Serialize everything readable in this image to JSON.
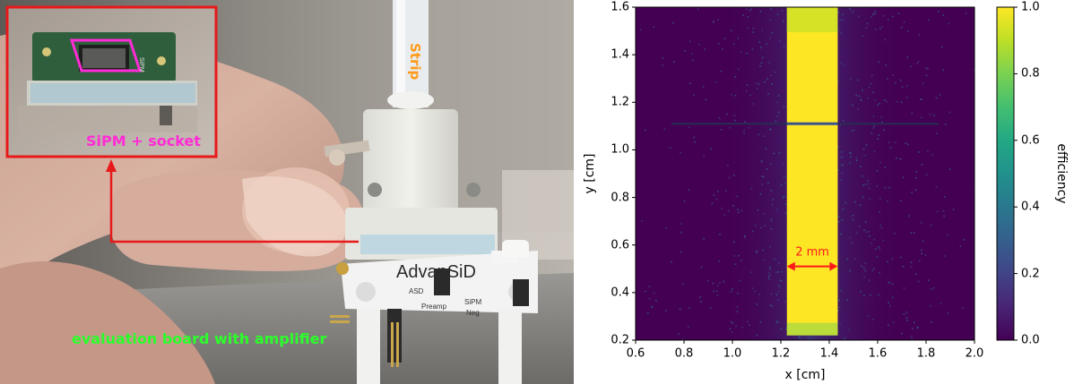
{
  "photo": {
    "labels": {
      "strip": "Strip",
      "sipm": "SiPM + socket",
      "board": "evaluation board with amplifier",
      "pcb_text_1": "SiPM",
      "pcb_text_2": "AdvanSiD",
      "pcb_text_3": "ASD",
      "pcb_text_4": "SiPM",
      "pcb_text_5": "Preamp",
      "pcb_text_6": "Neg"
    },
    "colors": {
      "sipm_label": "#ff2bd6",
      "board_label": "#2bff2b",
      "strip_label": "#ff9a1a",
      "arrow": "#e8191a"
    }
  },
  "chart_data": {
    "type": "heatmap",
    "title": "",
    "xlabel": "x [cm]",
    "ylabel": "y [cm]",
    "xlim": [
      0.6,
      2.0
    ],
    "ylim": [
      0.2,
      1.6
    ],
    "xticks": [
      "0.6",
      "0.8",
      "1.0",
      "1.2",
      "1.4",
      "1.6",
      "1.8",
      "2.0"
    ],
    "yticks": [
      "0.2",
      "0.4",
      "0.6",
      "0.8",
      "1.0",
      "1.2",
      "1.4",
      "1.6"
    ],
    "colorbar": {
      "label": "efficiency",
      "range": [
        0.0,
        1.0
      ],
      "ticks": [
        "0.0",
        "0.2",
        "0.4",
        "0.6",
        "0.8",
        "1.0"
      ],
      "colormap": "viridis"
    },
    "high_efficiency_band": {
      "x_start": 1.225,
      "x_end": 1.435,
      "y_start": 0.22,
      "y_end": 1.6,
      "value": 1.0
    },
    "gap_line_y": 1.11,
    "annotation": {
      "text": "2 mm",
      "x_start": 1.225,
      "x_end": 1.435,
      "y": 0.51,
      "color": "#ff1a1a"
    },
    "grid": false
  }
}
